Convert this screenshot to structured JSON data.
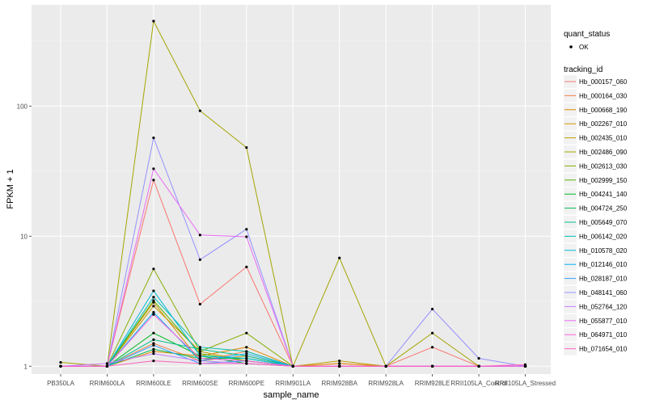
{
  "chart_data": {
    "type": "line",
    "xlabel": "sample_name",
    "ylabel": "FPKM + 1",
    "y_scale": "log10",
    "ylim": [
      0.87,
      600
    ],
    "y_ticks": [
      1,
      10,
      100
    ],
    "y_tick_labels": [
      "1",
      "10",
      "100"
    ],
    "categories": [
      "PB350LA",
      "RRIM600LA",
      "RRIM600LE",
      "RRIM600SE",
      "RRIM600PE",
      "RRIM901LA",
      "RRIM928BA",
      "RRIM928LA",
      "RRIM928LE",
      "RRII105LA_Control",
      "RRII105LA_Stressed"
    ],
    "grid": true,
    "background": "#ebebeb",
    "legend_position": "right",
    "legend": {
      "shape_title": "quant_status",
      "shape_items": [
        "OK"
      ],
      "color_title": "tracking_id"
    },
    "series": [
      {
        "name": "Hb_000157_060",
        "color": "#f8766d",
        "values": [
          1,
          1,
          27,
          3,
          5.8,
          1,
          1.05,
          1,
          1.4,
          1,
          1
        ]
      },
      {
        "name": "Hb_000164_030",
        "color": "#ef7f49",
        "values": [
          1,
          1,
          1.5,
          1.1,
          1.3,
          1,
          1,
          1,
          1,
          1,
          1
        ]
      },
      {
        "name": "Hb_000668_190",
        "color": "#e38900",
        "values": [
          1,
          1,
          1.3,
          1.2,
          1.4,
          1,
          1.05,
          1,
          1,
          1,
          1
        ]
      },
      {
        "name": "Hb_002267_010",
        "color": "#d29400",
        "values": [
          1,
          1,
          3.1,
          1.1,
          1.2,
          1,
          1,
          1,
          1,
          1,
          1
        ]
      },
      {
        "name": "Hb_002435_010",
        "color": "#bc9d00",
        "values": [
          1,
          1,
          2.9,
          1.3,
          1.1,
          1,
          1.1,
          1,
          1,
          1,
          1
        ]
      },
      {
        "name": "Hb_002486_090",
        "color": "#a3a500",
        "values": [
          1.07,
          1,
          450,
          92,
          48,
          1,
          6.8,
          1,
          1.8,
          1,
          1
        ]
      },
      {
        "name": "Hb_002613_030",
        "color": "#85ad00",
        "values": [
          1,
          1,
          5.6,
          1.3,
          1.8,
          1,
          1,
          1,
          1,
          1,
          1
        ]
      },
      {
        "name": "Hb_002999_150",
        "color": "#5bb300",
        "values": [
          1,
          1,
          3.2,
          1.25,
          1.1,
          1,
          1,
          1,
          1,
          1,
          1
        ]
      },
      {
        "name": "Hb_004241_140",
        "color": "#00b81f",
        "values": [
          1,
          1,
          1.8,
          1.2,
          1.05,
          1,
          1,
          1,
          1,
          1,
          1
        ]
      },
      {
        "name": "Hb_004724_250",
        "color": "#00bc59",
        "values": [
          1,
          1,
          1.35,
          1.15,
          1.15,
          1,
          1,
          1,
          1,
          1,
          1
        ]
      },
      {
        "name": "Hb_005649_070",
        "color": "#00c08b",
        "values": [
          1,
          1,
          1.6,
          1.35,
          1.2,
          1,
          1,
          1,
          1,
          1,
          1
        ]
      },
      {
        "name": "Hb_006142_020",
        "color": "#00bfb2",
        "values": [
          1,
          1,
          3.4,
          1.4,
          1.3,
          1,
          1,
          1,
          1,
          1,
          1
        ]
      },
      {
        "name": "Hb_010578_020",
        "color": "#00bad6",
        "values": [
          1,
          1,
          3.8,
          1.2,
          1.15,
          1,
          1,
          1,
          1,
          1,
          1
        ]
      },
      {
        "name": "Hb_012146_010",
        "color": "#00b0f6",
        "values": [
          1,
          1,
          2.6,
          1.1,
          1.25,
          1,
          1,
          1,
          1,
          1,
          1
        ]
      },
      {
        "name": "Hb_028187_010",
        "color": "#35a2ff",
        "values": [
          1,
          1,
          1.45,
          1.05,
          1.1,
          1,
          1,
          1,
          1,
          1,
          1
        ]
      },
      {
        "name": "Hb_048141_060",
        "color": "#9590ff",
        "values": [
          1,
          1,
          57,
          6.6,
          11.3,
          1,
          1,
          1,
          2.75,
          1.15,
          1
        ]
      },
      {
        "name": "Hb_052764_120",
        "color": "#c77cff",
        "values": [
          1,
          1.05,
          1.25,
          1.1,
          1.05,
          1,
          1,
          1,
          1,
          1,
          1
        ]
      },
      {
        "name": "Hb_055877_010",
        "color": "#e76bf3",
        "values": [
          1,
          1,
          33,
          10.2,
          9.9,
          1,
          1,
          1,
          1,
          1,
          1
        ]
      },
      {
        "name": "Hb_064971_010",
        "color": "#fa62db",
        "values": [
          1,
          1,
          2.5,
          1.15,
          1.1,
          1,
          1,
          1,
          1,
          1,
          1
        ]
      },
      {
        "name": "Hb_071654_010",
        "color": "#ff62bc",
        "values": [
          1,
          1,
          1.1,
          1.05,
          1.05,
          1,
          1,
          1,
          1,
          1,
          1.03
        ]
      }
    ]
  }
}
